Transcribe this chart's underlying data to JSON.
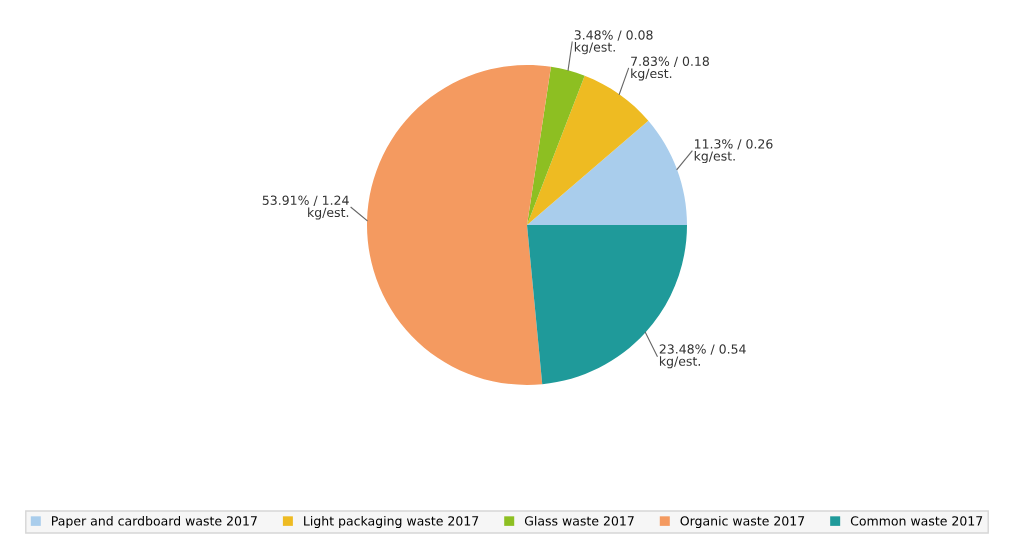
{
  "chart_data": {
    "type": "pie",
    "categories": [
      "Paper and cardboard waste 2017",
      "Light packaging waste 2017",
      "Glass waste 2017",
      "Organic waste 2017",
      "Common waste 2017"
    ],
    "values": [
      11.3,
      7.83,
      3.48,
      53.91,
      23.48
    ],
    "value_labels": [
      "11.3% / 0.26 kg/est.",
      "7.83% / 0.18 kg/est.",
      "3.48% / 0.08 kg/est.",
      "53.91% / 1.24 kg/est.",
      "23.48% / 0.54 kg/est."
    ],
    "colors": [
      "#a9cdec",
      "#eebb22",
      "#8dbf22",
      "#f49a60",
      "#1f9a9a"
    ],
    "legend": "bottom"
  }
}
